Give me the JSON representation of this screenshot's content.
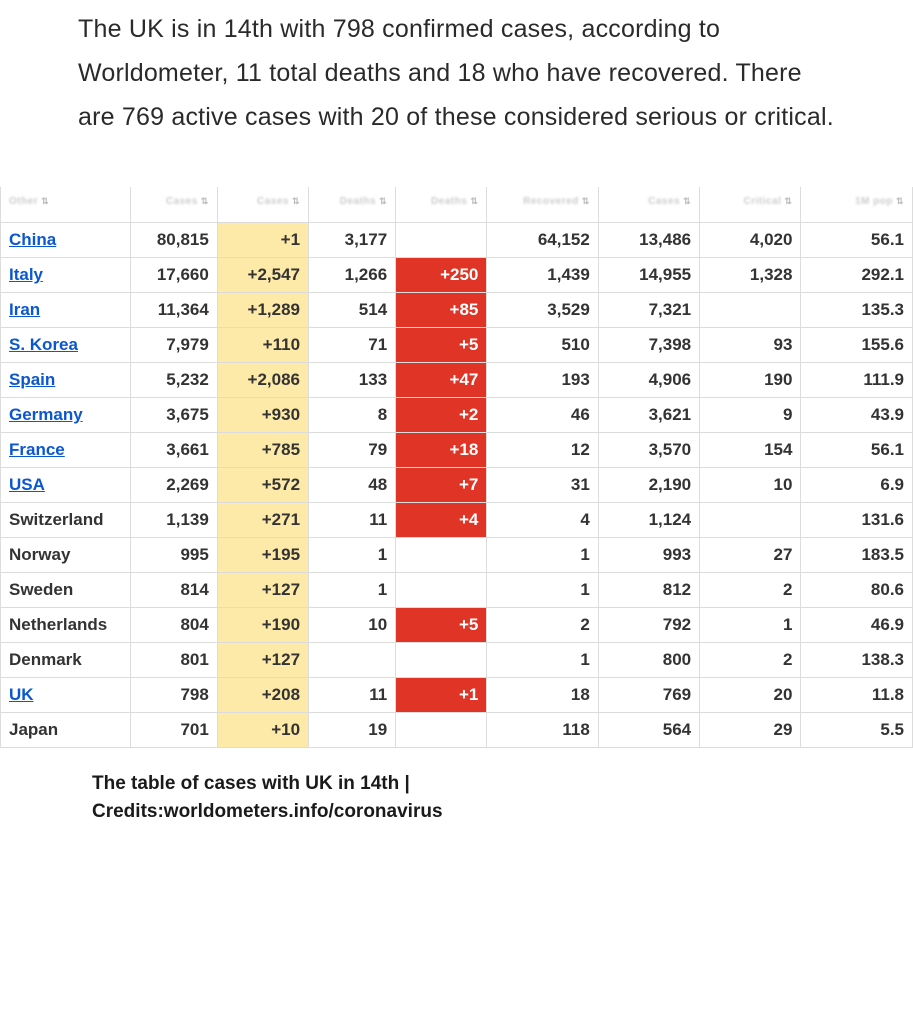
{
  "intro_text": "The UK is in 14th with 798 confirmed cases, according to Worldometer, 11 total deaths and 18 who have recovered. There are 769 active cases with 20 of these considered serious or critical.",
  "caption_line1": "The table of cases with UK in 14th |",
  "caption_line2": "Credits:worldometers.info/coronavirus",
  "colors": {
    "link": "#0b57d0",
    "new_cases_bg": "#fdeaa8",
    "new_deaths_bg": "#e03426",
    "border": "#dcdcdc",
    "text": "#333333"
  },
  "table": {
    "type": "table",
    "headers": [
      "Other",
      "Cases",
      "Cases",
      "Deaths",
      "Deaths",
      "Recovered",
      "Cases",
      "Critical",
      "1M pop"
    ],
    "rows": [
      {
        "country": "China",
        "link": true,
        "cases": "80,815",
        "new_cases": "+1",
        "deaths": "3,177",
        "new_deaths": "",
        "recovered": "64,152",
        "active": "13,486",
        "critical": "4,020",
        "per_m": "56.1"
      },
      {
        "country": "Italy",
        "link": true,
        "cases": "17,660",
        "new_cases": "+2,547",
        "deaths": "1,266",
        "new_deaths": "+250",
        "recovered": "1,439",
        "active": "14,955",
        "critical": "1,328",
        "per_m": "292.1"
      },
      {
        "country": "Iran",
        "link": true,
        "cases": "11,364",
        "new_cases": "+1,289",
        "deaths": "514",
        "new_deaths": "+85",
        "recovered": "3,529",
        "active": "7,321",
        "critical": "",
        "per_m": "135.3"
      },
      {
        "country": "S. Korea",
        "link": true,
        "cases": "7,979",
        "new_cases": "+110",
        "deaths": "71",
        "new_deaths": "+5",
        "recovered": "510",
        "active": "7,398",
        "critical": "93",
        "per_m": "155.6"
      },
      {
        "country": "Spain",
        "link": true,
        "cases": "5,232",
        "new_cases": "+2,086",
        "deaths": "133",
        "new_deaths": "+47",
        "recovered": "193",
        "active": "4,906",
        "critical": "190",
        "per_m": "111.9"
      },
      {
        "country": "Germany",
        "link": true,
        "cases": "3,675",
        "new_cases": "+930",
        "deaths": "8",
        "new_deaths": "+2",
        "recovered": "46",
        "active": "3,621",
        "critical": "9",
        "per_m": "43.9"
      },
      {
        "country": "France",
        "link": true,
        "cases": "3,661",
        "new_cases": "+785",
        "deaths": "79",
        "new_deaths": "+18",
        "recovered": "12",
        "active": "3,570",
        "critical": "154",
        "per_m": "56.1"
      },
      {
        "country": "USA",
        "link": true,
        "cases": "2,269",
        "new_cases": "+572",
        "deaths": "48",
        "new_deaths": "+7",
        "recovered": "31",
        "active": "2,190",
        "critical": "10",
        "per_m": "6.9"
      },
      {
        "country": "Switzerland",
        "link": false,
        "cases": "1,139",
        "new_cases": "+271",
        "deaths": "11",
        "new_deaths": "+4",
        "recovered": "4",
        "active": "1,124",
        "critical": "",
        "per_m": "131.6"
      },
      {
        "country": "Norway",
        "link": false,
        "cases": "995",
        "new_cases": "+195",
        "deaths": "1",
        "new_deaths": "",
        "recovered": "1",
        "active": "993",
        "critical": "27",
        "per_m": "183.5"
      },
      {
        "country": "Sweden",
        "link": false,
        "cases": "814",
        "new_cases": "+127",
        "deaths": "1",
        "new_deaths": "",
        "recovered": "1",
        "active": "812",
        "critical": "2",
        "per_m": "80.6"
      },
      {
        "country": "Netherlands",
        "link": false,
        "cases": "804",
        "new_cases": "+190",
        "deaths": "10",
        "new_deaths": "+5",
        "recovered": "2",
        "active": "792",
        "critical": "1",
        "per_m": "46.9"
      },
      {
        "country": "Denmark",
        "link": false,
        "cases": "801",
        "new_cases": "+127",
        "deaths": "",
        "new_deaths": "",
        "recovered": "1",
        "active": "800",
        "critical": "2",
        "per_m": "138.3"
      },
      {
        "country": "UK",
        "link": true,
        "cases": "798",
        "new_cases": "+208",
        "deaths": "11",
        "new_deaths": "+1",
        "recovered": "18",
        "active": "769",
        "critical": "20",
        "per_m": "11.8"
      },
      {
        "country": "Japan",
        "link": false,
        "cases": "701",
        "new_cases": "+10",
        "deaths": "19",
        "new_deaths": "",
        "recovered": "118",
        "active": "564",
        "critical": "29",
        "per_m": "5.5"
      }
    ]
  }
}
